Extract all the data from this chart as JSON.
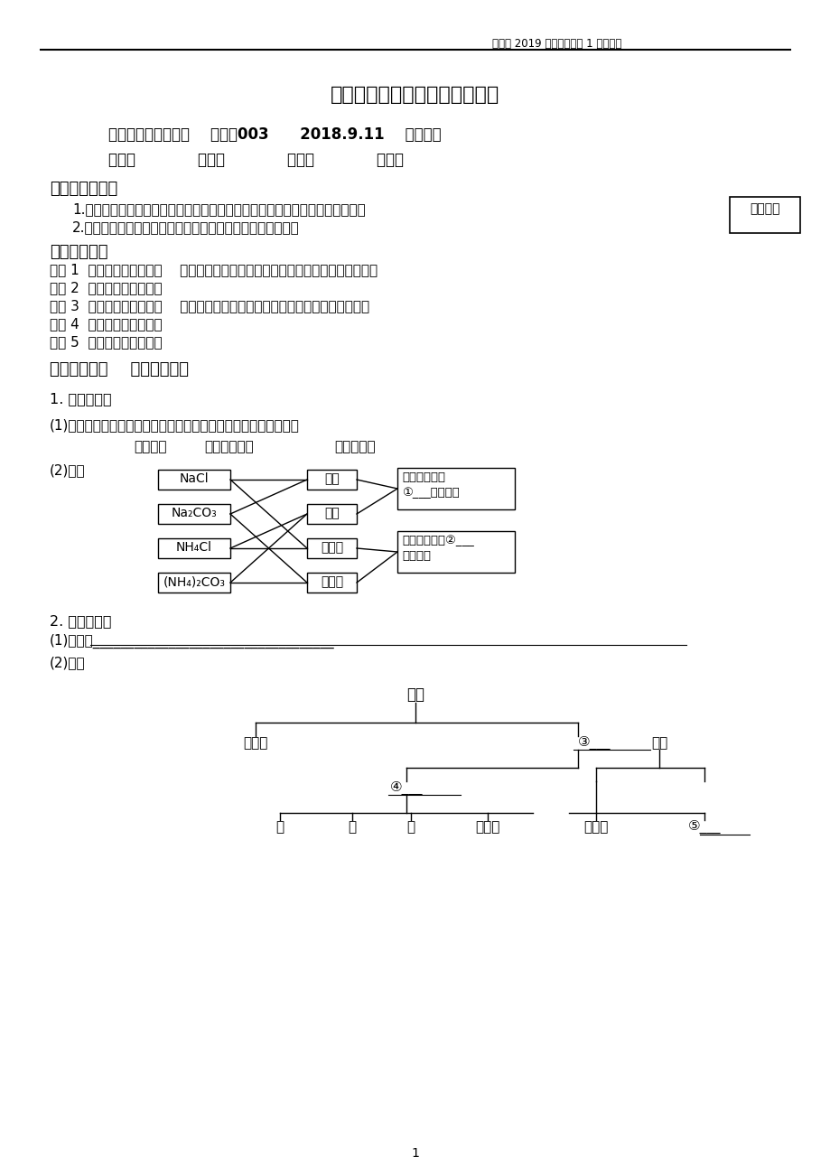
{
  "page_title_right": "人教版 2019 高一化学必修 1 导学提纲",
  "main_title": "学生课堂导学提纲（高一化学）",
  "subtitle_line": "简单分类法及其应用    编号：003      2018.9.11    编制人：",
  "class_line": "班级：            姓名：            小组：            评价：",
  "section1_title": "【新课程标准】",
  "section1_items": [
    "1.认识元素可以组成不同种类的物质，根据物质的组成和性质对物质进行分类。",
    "2.认识同类物质具有相似性，一定条件下物质可以相互转化。"
  ],
  "problem_box": "问题记录",
  "section2_title": "【核心素养】",
  "section2_items": [
    "素养 1  宏观辨识与微观探析    能从不同层次认识物质的多样性，并对物质进行分类。",
    "素养 2  变化观念与平衡思想",
    "素养 3  证据推理与模型认知    能从物质类别的角度，认识到物质是运动和变化的。",
    "素养 4  科学探究与创新意识",
    "素养 5  科学精神与社会责任"
  ],
  "section3_title": "【导学流程】    一、基础感知",
  "item1_title": "1. 交叉分类法",
  "item1_def": "(1)含义：根据不同的分类标准，对同一事物进行多种分类的方法，",
  "item1_bold": "即对物质以不同的标准进行分类。",
  "item1_example_label": "(2)举例",
  "left_boxes": [
    "NaCl",
    "Na₂CO₃",
    "NH₄Cl",
    "(NH₄)₂CO₃"
  ],
  "right_boxes": [
    "钠盐",
    "铵盐",
    "盐酸盐",
    "碳酸盐"
  ],
  "right_box1_text": [
    "根据物质所含",
    "①___不同划分"
  ],
  "right_box2_text": [
    "根据物质所含②___",
    "不同划分"
  ],
  "item2_title": "2. 树状分类法",
  "item2_def": "(1)含义：___________________________________",
  "item2_example_label": "(2)举例",
  "tree_root": "物质",
  "tree_level1": [
    "混合物",
    "③___"
  ],
  "tree_level2_left": "④___",
  "tree_level2_right": "单质",
  "tree_level3": [
    "盐",
    "碱",
    "酸",
    "氧化物",
    "非金属",
    "⑤___"
  ],
  "page_number": "1",
  "bg_color": "#ffffff",
  "text_color": "#000000",
  "line_color": "#000000"
}
